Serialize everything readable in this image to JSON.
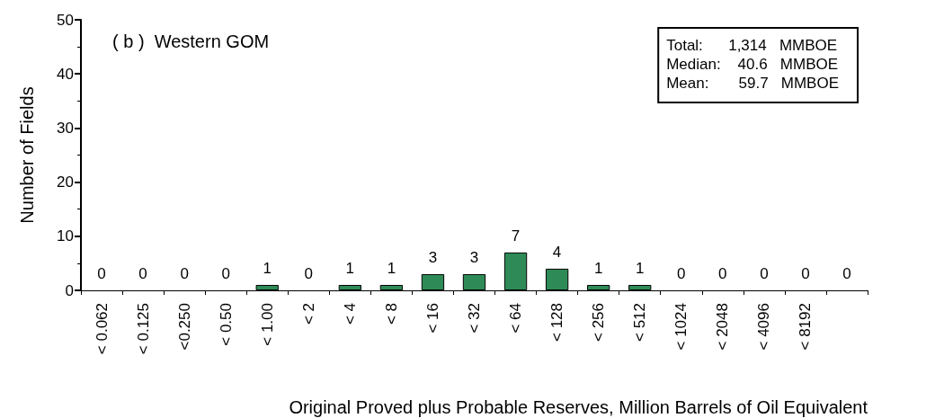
{
  "chart_data": {
    "type": "bar",
    "xlabel": "Original Proved plus Probable Reserves, Million Barrels of Oil Equivalent",
    "ylabel": "Number of Fields",
    "categories": [
      "< 0.062",
      "< 0.125",
      "<0.250",
      "< 0.50",
      "< 1.00",
      "< 2",
      "< 4",
      "< 8",
      "< 16",
      "< 32",
      "< 64",
      "< 128",
      "< 256",
      "< 512",
      "< 1024",
      "< 2048",
      "< 4096",
      "< 8192",
      null
    ],
    "values": [
      0,
      0,
      0,
      0,
      1,
      0,
      1,
      1,
      3,
      3,
      7,
      4,
      1,
      1,
      0,
      0,
      0,
      0,
      0
    ],
    "color": "#2e8b57",
    "ylim": [
      0,
      50
    ],
    "yticks": [
      0,
      10,
      20,
      30,
      40,
      50
    ],
    "grid": false,
    "data_labels": true,
    "annotations": [
      "( b )  Western GOM",
      "Total:      1,314   MMBOE",
      "Median:    40.6   MMBOE",
      "Mean:       59.7   MMBOE"
    ]
  }
}
